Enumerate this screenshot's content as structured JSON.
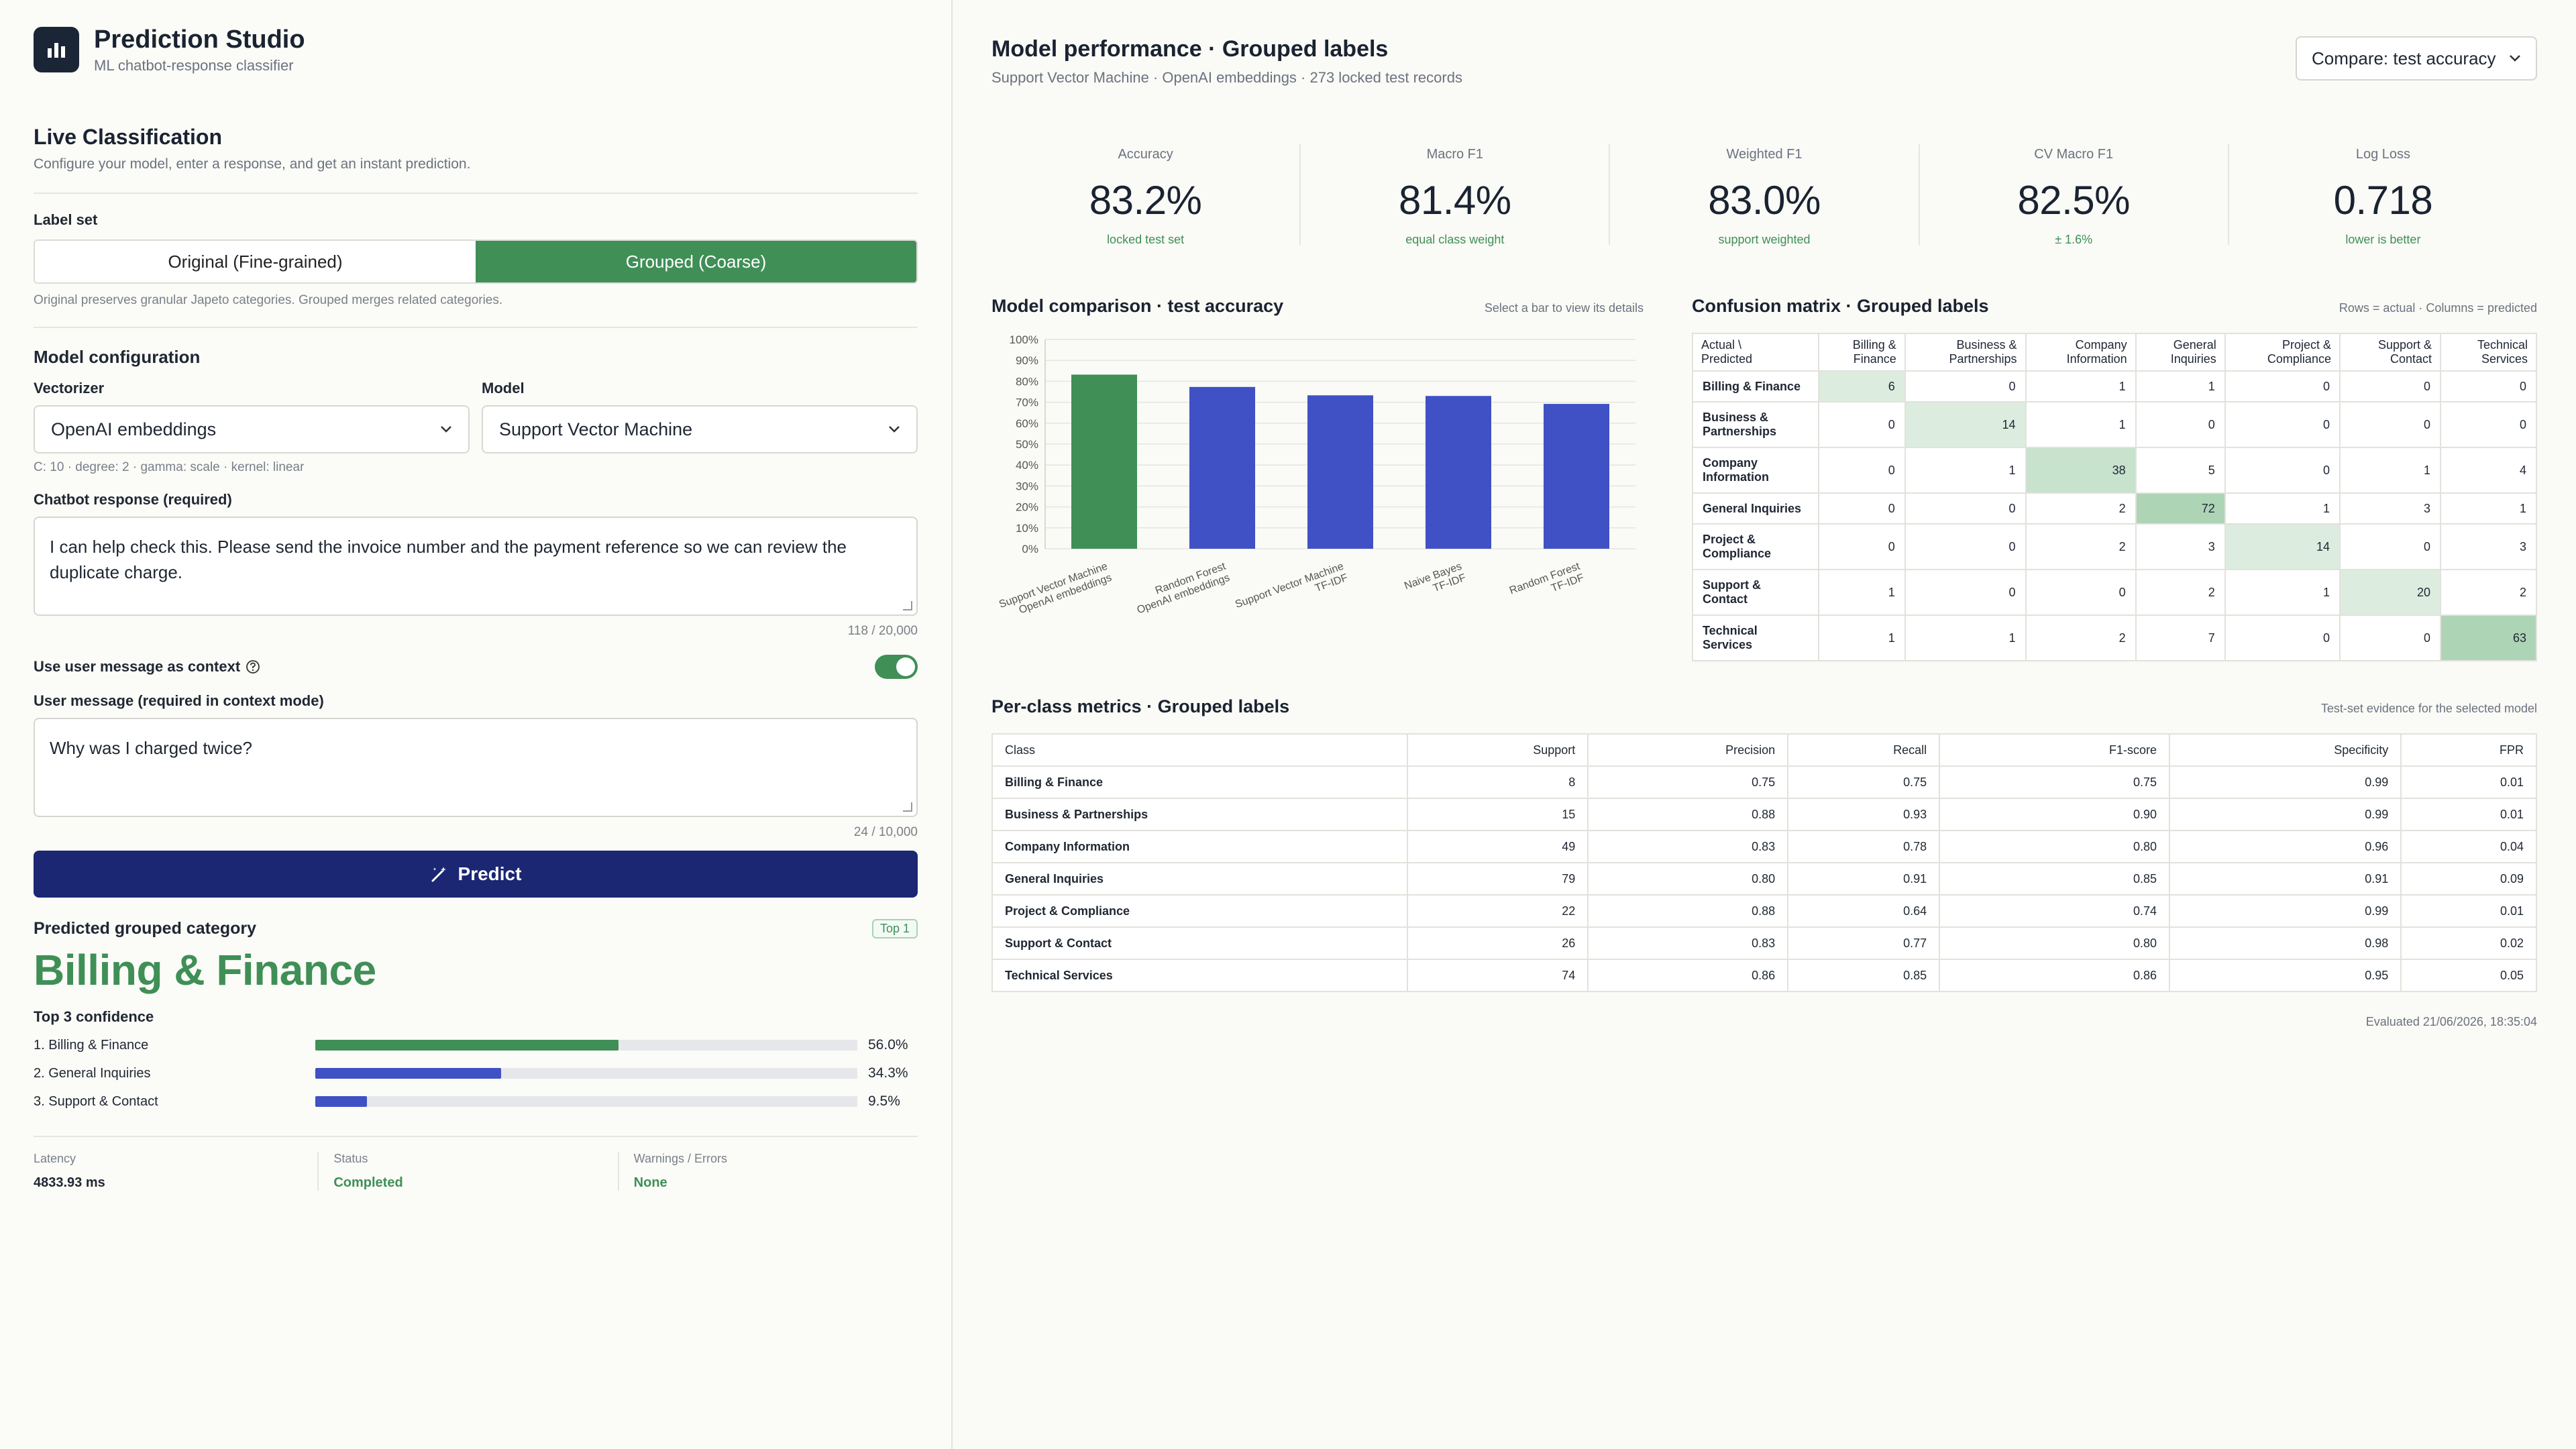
{
  "brand": {
    "title": "Prediction Studio",
    "subtitle": "ML chatbot-response classifier"
  },
  "live": {
    "title": "Live Classification",
    "description": "Configure your model, enter a response, and get an instant prediction."
  },
  "label_set": {
    "label": "Label set",
    "options": [
      "Original (Fine-grained)",
      "Grouped (Coarse)"
    ],
    "selected": "Grouped (Coarse)",
    "hint": "Original preserves granular Japeto categories. Grouped merges related categories."
  },
  "model_config": {
    "title": "Model configuration",
    "vectorizer_label": "Vectorizer",
    "vectorizer_value": "OpenAI embeddings",
    "model_label": "Model",
    "model_value": "Support Vector Machine",
    "params": "C: 10 · degree: 2 · gamma: scale · kernel: linear"
  },
  "chatbot_response": {
    "label": "Chatbot response (required)",
    "value": "I can help check this. Please send the invoice number and the payment reference so we can review the duplicate charge.",
    "counter": "118 / 20,000"
  },
  "context": {
    "toggle_label": "Use user message as context",
    "toggle_on": true,
    "user_label": "User message (required in context mode)",
    "user_value": "Why was I charged twice?",
    "counter": "24 / 10,000"
  },
  "predict_label": "Predict",
  "result": {
    "heading": "Predicted grouped category",
    "badge": "Top 1",
    "category": "Billing & Finance",
    "top3_title": "Top 3 confidence",
    "top3": [
      {
        "label": "1. Billing & Finance",
        "value": "56.0%",
        "fraction": 0.56,
        "color": "#3f8f57"
      },
      {
        "label": "2. General Inquiries",
        "value": "34.3%",
        "fraction": 0.343,
        "color": "#3f51c4"
      },
      {
        "label": "3. Support & Contact",
        "value": "9.5%",
        "fraction": 0.095,
        "color": "#3f51c4"
      }
    ]
  },
  "status": {
    "latency_label": "Latency",
    "latency_value": "4833.93 ms",
    "status_label": "Status",
    "status_value": "Completed",
    "warnings_label": "Warnings / Errors",
    "warnings_value": "None"
  },
  "performance": {
    "title": "Model performance · Grouped labels",
    "subtitle": "Support Vector Machine · OpenAI embeddings · 273 locked test records",
    "compare_select": "Compare: test accuracy"
  },
  "kpis": [
    {
      "label": "Accuracy",
      "value": "83.2%",
      "note": "locked test set"
    },
    {
      "label": "Macro F1",
      "value": "81.4%",
      "note": "equal class weight"
    },
    {
      "label": "Weighted F1",
      "value": "83.0%",
      "note": "support weighted"
    },
    {
      "label": "CV Macro F1",
      "value": "82.5%",
      "note": "± 1.6%"
    },
    {
      "label": "Log Loss",
      "value": "0.718",
      "note": "lower is better"
    }
  ],
  "comparison": {
    "title": "Model comparison · test accuracy",
    "hint": "Select a bar to view its details"
  },
  "chart_data": {
    "type": "bar",
    "categories": [
      [
        "Support Vector Machine",
        "OpenAI embeddings"
      ],
      [
        "Random Forest",
        "OpenAI embeddings"
      ],
      [
        "Support Vector Machine",
        "TF-IDF"
      ],
      [
        "Naive Bayes",
        "TF-IDF"
      ],
      [
        "Random Forest",
        "TF-IDF"
      ]
    ],
    "values": [
      83.2,
      77.3,
      73.3,
      73.0,
      69.2
    ],
    "colors": [
      "#3f8f57",
      "#3f51c4",
      "#3f51c4",
      "#3f51c4",
      "#3f51c4"
    ],
    "yticks": [
      "0%",
      "10%",
      "20%",
      "30%",
      "40%",
      "50%",
      "60%",
      "70%",
      "80%",
      "90%",
      "100%"
    ],
    "ylim": [
      0,
      100
    ],
    "grid": true
  },
  "confusion": {
    "title": "Confusion matrix · Grouped labels",
    "hint": "Rows = actual · Columns = predicted",
    "corner": [
      "Actual \\",
      "Predicted"
    ],
    "columns": [
      [
        "Billing &",
        "Finance"
      ],
      [
        "Business &",
        "Partnerships"
      ],
      [
        "Company",
        "Information"
      ],
      [
        "General",
        "Inquiries"
      ],
      [
        "Project &",
        "Compliance"
      ],
      [
        "Support &",
        "Contact"
      ],
      [
        "Technical",
        "Services"
      ]
    ],
    "rows": [
      {
        "label": [
          "Billing & Finance"
        ],
        "values": [
          6,
          0,
          1,
          1,
          0,
          0,
          0
        ]
      },
      {
        "label": [
          "Business &",
          "Partnerships"
        ],
        "values": [
          0,
          14,
          1,
          0,
          0,
          0,
          0
        ]
      },
      {
        "label": [
          "Company",
          "Information"
        ],
        "values": [
          0,
          1,
          38,
          5,
          0,
          1,
          4
        ]
      },
      {
        "label": [
          "General Inquiries"
        ],
        "values": [
          0,
          0,
          2,
          72,
          1,
          3,
          1
        ]
      },
      {
        "label": [
          "Project &",
          "Compliance"
        ],
        "values": [
          0,
          0,
          2,
          3,
          14,
          0,
          3
        ]
      },
      {
        "label": [
          "Support &",
          "Contact"
        ],
        "values": [
          1,
          0,
          0,
          2,
          1,
          20,
          2
        ]
      },
      {
        "label": [
          "Technical",
          "Services"
        ],
        "values": [
          1,
          1,
          2,
          7,
          0,
          0,
          63
        ]
      }
    ]
  },
  "per_class": {
    "title": "Per-class metrics · Grouped labels",
    "hint": "Test-set evidence for the selected model",
    "headers": [
      "Class",
      "Support",
      "Precision",
      "Recall",
      "F1-score",
      "Specificity",
      "FPR"
    ],
    "rows": [
      [
        "Billing & Finance",
        "8",
        "0.75",
        "0.75",
        "0.75",
        "0.99",
        "0.01"
      ],
      [
        "Business & Partnerships",
        "15",
        "0.88",
        "0.93",
        "0.90",
        "0.99",
        "0.01"
      ],
      [
        "Company Information",
        "49",
        "0.83",
        "0.78",
        "0.80",
        "0.96",
        "0.04"
      ],
      [
        "General Inquiries",
        "79",
        "0.80",
        "0.91",
        "0.85",
        "0.91",
        "0.09"
      ],
      [
        "Project & Compliance",
        "22",
        "0.88",
        "0.64",
        "0.74",
        "0.99",
        "0.01"
      ],
      [
        "Support & Contact",
        "26",
        "0.83",
        "0.77",
        "0.80",
        "0.98",
        "0.02"
      ],
      [
        "Technical Services",
        "74",
        "0.86",
        "0.85",
        "0.86",
        "0.95",
        "0.05"
      ]
    ],
    "evaluated": "Evaluated 21/06/2026, 18:35:04"
  }
}
